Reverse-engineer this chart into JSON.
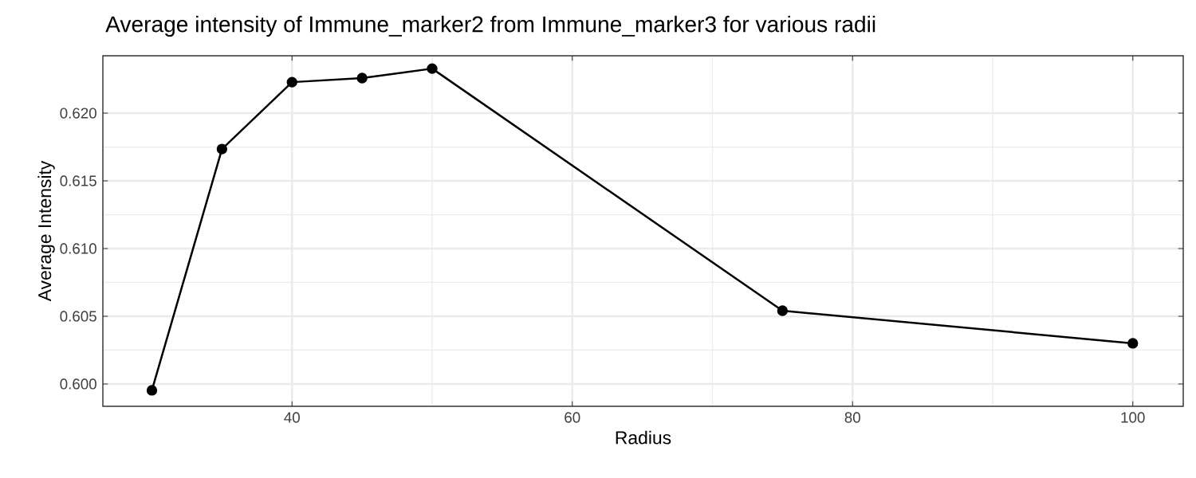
{
  "chart_data": {
    "type": "line",
    "title": "Average intensity of Immune_marker2 from Immune_marker3 for various radii",
    "xlabel": "Radius",
    "ylabel": "Average Intensity",
    "x": [
      30,
      35,
      40,
      45,
      50,
      75,
      100
    ],
    "series": [
      {
        "color": "#000000",
        "values": [
          0.59953,
          0.61735,
          0.62229,
          0.62259,
          0.62329,
          0.60541,
          0.603
        ]
      }
    ],
    "xlim": [
      26.5,
      103.6
    ],
    "ylim": [
      0.59835,
      0.62424
    ],
    "xticks": [
      40,
      60,
      80,
      100
    ],
    "yticks": [
      {
        "value": 0.6,
        "label": "0.600"
      },
      {
        "value": 0.605,
        "label": "0.605"
      },
      {
        "value": 0.61,
        "label": "0.610"
      },
      {
        "value": 0.615,
        "label": "0.615"
      },
      {
        "value": 0.62,
        "label": "0.620"
      }
    ],
    "grid": true,
    "marker": "circle",
    "line_style": "solid"
  }
}
